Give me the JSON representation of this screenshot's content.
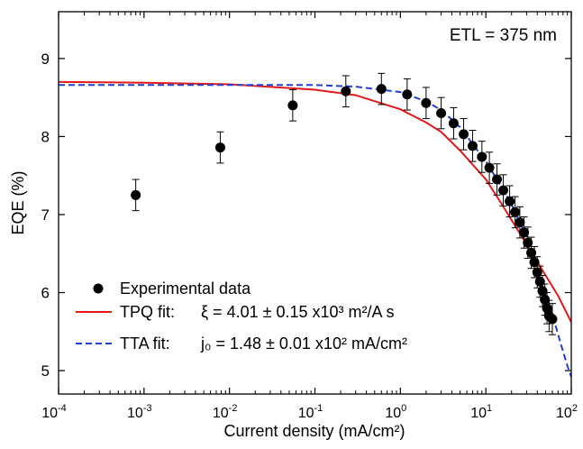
{
  "chart_data": {
    "type": "scatter",
    "title": "",
    "xlabel": "Current density (mA/cm²)",
    "ylabel": "EQE (%)",
    "xscale": "log",
    "xlim": [
      0.0001,
      100
    ],
    "ylim": [
      4.7,
      9.6
    ],
    "x_ticks": [
      {
        "value": 0.0001,
        "base": "10",
        "exp": "-4"
      },
      {
        "value": 0.001,
        "base": "10",
        "exp": "-3"
      },
      {
        "value": 0.01,
        "base": "10",
        "exp": "-2"
      },
      {
        "value": 0.1,
        "base": "10",
        "exp": "-1"
      },
      {
        "value": 1,
        "base": "10",
        "exp": "0"
      },
      {
        "value": 10,
        "base": "10",
        "exp": "1"
      },
      {
        "value": 100,
        "base": "10",
        "exp": "2"
      }
    ],
    "y_ticks": [
      {
        "value": 5,
        "label": "5"
      },
      {
        "value": 6,
        "label": "6"
      },
      {
        "value": 7,
        "label": "7"
      },
      {
        "value": 8,
        "label": "8"
      },
      {
        "value": 9,
        "label": "9"
      }
    ],
    "annotation": "ETL = 375 nm",
    "grid": false,
    "legend_position": "bottom-left",
    "series": [
      {
        "name": "Experimental data",
        "kind": "points",
        "color": "#000000",
        "x": [
          0.0008,
          0.0078,
          0.055,
          0.23,
          0.6,
          1.2,
          2.0,
          3.0,
          4.2,
          5.5,
          7.0,
          9.0,
          11.0,
          13.5,
          16.0,
          19.0,
          22.0,
          25.0,
          28.0,
          31.0,
          34.0,
          37.0,
          40.0,
          43.0,
          46.0,
          49.0,
          52.0,
          55.0,
          60.0
        ],
        "y": [
          7.25,
          7.86,
          8.4,
          8.58,
          8.61,
          8.54,
          8.43,
          8.3,
          8.17,
          8.03,
          7.88,
          7.74,
          7.6,
          7.45,
          7.31,
          7.17,
          7.03,
          6.9,
          6.77,
          6.64,
          6.51,
          6.39,
          6.26,
          6.14,
          6.02,
          5.91,
          5.8,
          5.7,
          5.66
        ],
        "error": [
          0.2,
          0.2,
          0.2,
          0.2,
          0.2,
          0.2,
          0.2,
          0.2,
          0.2,
          0.2,
          0.2,
          0.2,
          0.2,
          0.2,
          0.2,
          0.2,
          0.2,
          0.2,
          0.2,
          0.2,
          0.2,
          0.2,
          0.2,
          0.2,
          0.2,
          0.2,
          0.2,
          0.2,
          0.2
        ]
      },
      {
        "name": "TPQ fit",
        "kind": "line",
        "style": "solid",
        "color": "#e41a1a",
        "x": [
          0.0001,
          0.001,
          0.01,
          0.1,
          0.3,
          1.0,
          2.0,
          3.0,
          5.0,
          10.0,
          15.0,
          20.0,
          30.0,
          50.0,
          70.0,
          100.0
        ],
        "y": [
          8.7,
          8.69,
          8.67,
          8.6,
          8.53,
          8.35,
          8.18,
          8.06,
          7.82,
          7.45,
          7.15,
          6.93,
          6.62,
          6.22,
          5.96,
          5.62
        ]
      },
      {
        "name": "TTA fit",
        "kind": "line",
        "style": "dashed",
        "color": "#1f3fd6",
        "x": [
          0.0001,
          0.001,
          0.01,
          0.1,
          0.3,
          1.0,
          2.0,
          3.0,
          5.0,
          10.0,
          15.0,
          20.0,
          30.0,
          45.0,
          60.0,
          75.0,
          90.0,
          100.0
        ],
        "y": [
          8.66,
          8.66,
          8.66,
          8.66,
          8.64,
          8.57,
          8.45,
          8.34,
          8.12,
          7.68,
          7.37,
          7.13,
          6.72,
          6.17,
          5.72,
          5.35,
          5.06,
          4.92
        ]
      }
    ],
    "legend": [
      {
        "label": "Experimental data",
        "fit": ""
      },
      {
        "label": "TPQ fit:",
        "fit": "ξ = 4.01 ± 0.15 x10³ m²/A s"
      },
      {
        "label": "TTA fit:",
        "fit": "j₀ = 1.48 ± 0.01 x10² mA/cm²"
      }
    ]
  }
}
